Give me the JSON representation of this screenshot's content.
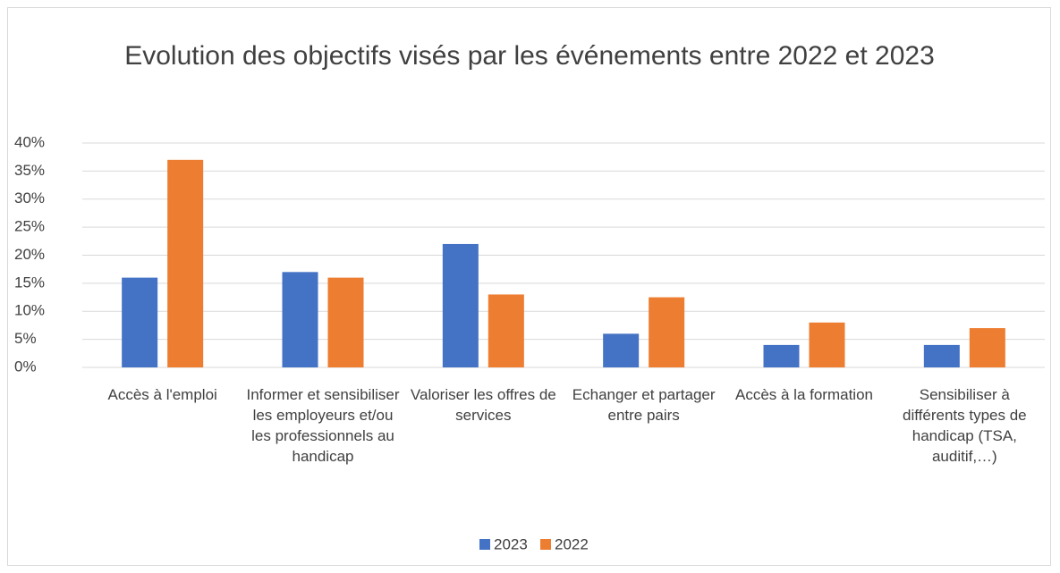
{
  "chart_data": {
    "type": "bar",
    "title": "Evolution des objectifs visés par les événements entre 2022 et 2023",
    "categories": [
      "Accès à l'emploi",
      "Informer et sensibiliser les employeurs et/ou les professionnels au handicap",
      "Valoriser les offres de services",
      "Echanger et partager entre pairs",
      "Accès à la formation",
      "Sensibiliser à différents types de handicap (TSA, auditif,…)"
    ],
    "series": [
      {
        "name": "2023",
        "color": "#4472c4",
        "values": [
          16,
          17,
          22,
          6,
          4,
          4
        ]
      },
      {
        "name": "2022",
        "color": "#ed7d31",
        "values": [
          37,
          16,
          13,
          12.5,
          8,
          7
        ]
      }
    ],
    "ylim": [
      0,
      40
    ],
    "yticks": [
      {
        "value": 0,
        "label": "0%"
      },
      {
        "value": 5,
        "label": "5%"
      },
      {
        "value": 10,
        "label": "10%"
      },
      {
        "value": 15,
        "label": "15%"
      },
      {
        "value": 20,
        "label": "20%"
      },
      {
        "value": 25,
        "label": "25%"
      },
      {
        "value": 30,
        "label": "30%"
      },
      {
        "value": 35,
        "label": "35%"
      },
      {
        "value": 40,
        "label": "40%"
      }
    ],
    "grid": true,
    "legend": "bottom"
  }
}
